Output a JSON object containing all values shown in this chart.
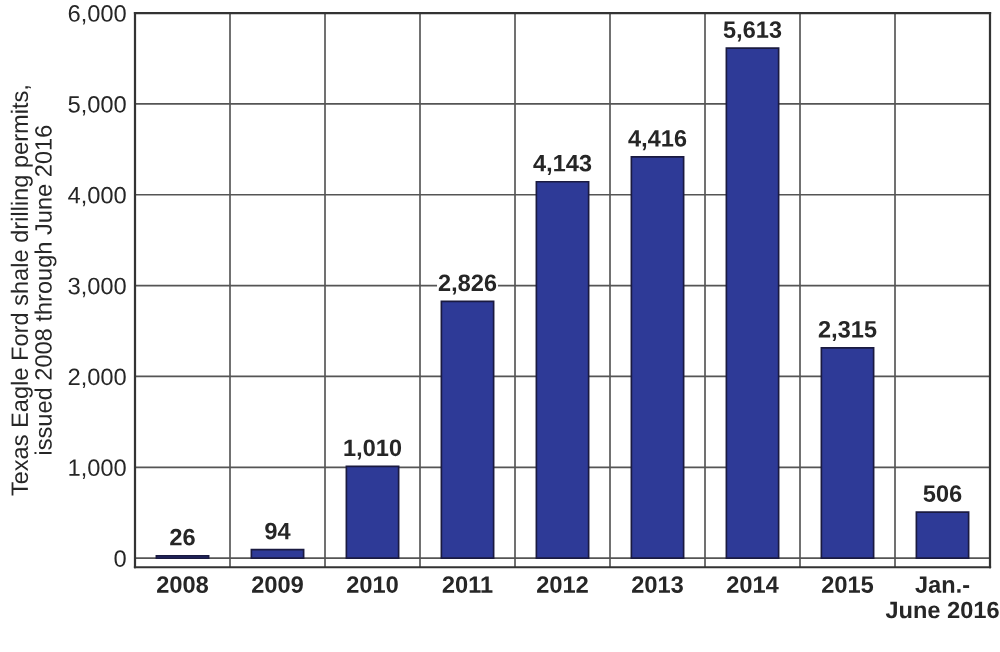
{
  "chart_data": {
    "type": "bar",
    "ylabel": "Texas Eagle Ford shale drilling permits,\nissued 2008 through June 2016",
    "categories": [
      "2008",
      "2009",
      "2010",
      "2011",
      "2012",
      "2013",
      "2014",
      "2015",
      "Jan.-\nJune 2016"
    ],
    "values": [
      26,
      94,
      1010,
      2826,
      4143,
      4416,
      5613,
      2315,
      506
    ],
    "value_labels": [
      "26",
      "94",
      "1,010",
      "2,826",
      "4,143",
      "4,416",
      "5,613",
      "2,315",
      "506"
    ],
    "color": "#2e3a97",
    "ylim": [
      -100,
      6000
    ],
    "yticks": [
      {
        "value": 0,
        "label": "0"
      },
      {
        "value": 1000,
        "label": "1,000"
      },
      {
        "value": 2000,
        "label": "2,000"
      },
      {
        "value": 3000,
        "label": "3,000"
      },
      {
        "value": 4000,
        "label": "4,000"
      },
      {
        "value": 5000,
        "label": "5,000"
      },
      {
        "value": 6000,
        "label": "6,000"
      }
    ],
    "grid": true
  }
}
